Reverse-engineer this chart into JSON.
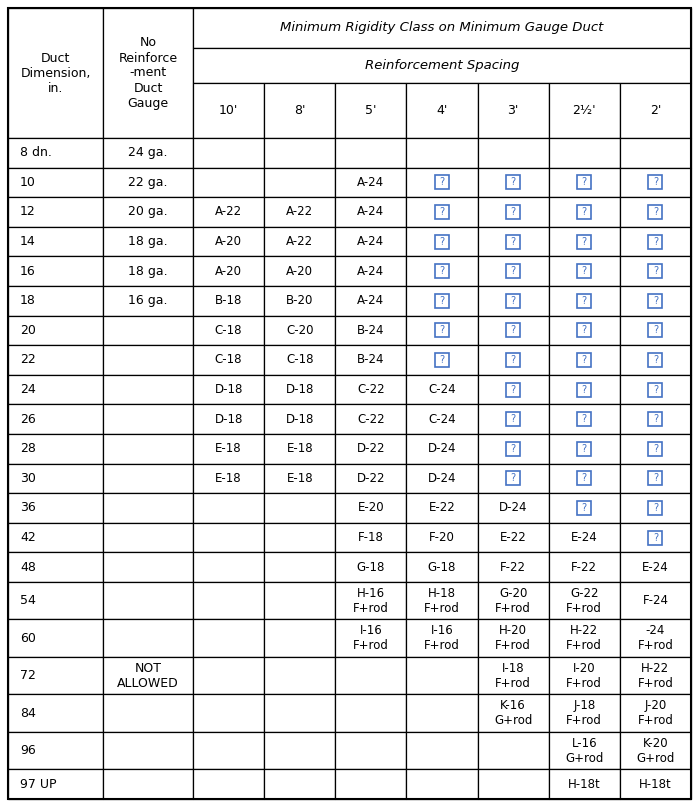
{
  "title_top": "Minimum Rigidity Class on Minimum Gauge Duct",
  "subtitle": "Reinforcement Spacing",
  "col_header1": "Duct\nDimension,\nin.",
  "col_header2": "No\nReinforce\n-ment\nDuct\nGauge",
  "spacing_headers": [
    "10'",
    "8'",
    "5'",
    "4'",
    "3'",
    "2½'",
    "2'"
  ],
  "rows": [
    {
      "dim": "8 dn.",
      "gauge": "24 ga.",
      "vals": [
        "",
        "",
        "",
        "",
        "",
        "",
        ""
      ]
    },
    {
      "dim": "10",
      "gauge": "22 ga.",
      "vals": [
        "",
        "",
        "A-24",
        "¿",
        "¿",
        "¿",
        "¿"
      ]
    },
    {
      "dim": "12",
      "gauge": "20 ga.",
      "vals": [
        "A-22",
        "A-22",
        "A-24",
        "¿",
        "¿",
        "¿",
        "¿"
      ]
    },
    {
      "dim": "14",
      "gauge": "18 ga.",
      "vals": [
        "A-20",
        "A-22",
        "A-24",
        "¿",
        "¿",
        "¿",
        "¿"
      ]
    },
    {
      "dim": "16",
      "gauge": "18 ga.",
      "vals": [
        "A-20",
        "A-20",
        "A-24",
        "¿",
        "¿",
        "¿",
        "¿"
      ]
    },
    {
      "dim": "18",
      "gauge": "16 ga.",
      "vals": [
        "B-18",
        "B-20",
        "A-24",
        "¿",
        "¿",
        "¿",
        "¿"
      ]
    },
    {
      "dim": "20",
      "gauge": "",
      "vals": [
        "C-18",
        "C-20",
        "B-24",
        "¿",
        "¿",
        "¿",
        "¿"
      ]
    },
    {
      "dim": "22",
      "gauge": "",
      "vals": [
        "C-18",
        "C-18",
        "B-24",
        "¿",
        "¿",
        "¿",
        "¿"
      ]
    },
    {
      "dim": "24",
      "gauge": "",
      "vals": [
        "D-18",
        "D-18",
        "C-22",
        "C-24",
        "¿",
        "¿",
        "¿"
      ]
    },
    {
      "dim": "26",
      "gauge": "",
      "vals": [
        "D-18",
        "D-18",
        "C-22",
        "C-24",
        "¿",
        "¿",
        "¿"
      ]
    },
    {
      "dim": "28",
      "gauge": "",
      "vals": [
        "E-18",
        "E-18",
        "D-22",
        "D-24",
        "¿",
        "¿",
        "¿"
      ]
    },
    {
      "dim": "30",
      "gauge": "",
      "vals": [
        "E-18",
        "E-18",
        "D-22",
        "D-24",
        "¿",
        "¿",
        "¿"
      ]
    },
    {
      "dim": "36",
      "gauge": "",
      "vals": [
        "",
        "",
        "E-20",
        "E-22",
        "D-24",
        "¿",
        "¿"
      ]
    },
    {
      "dim": "42",
      "gauge": "",
      "vals": [
        "",
        "",
        "F-18",
        "F-20",
        "E-22",
        "E-24",
        "¿"
      ]
    },
    {
      "dim": "48",
      "gauge": "",
      "vals": [
        "",
        "",
        "G-18",
        "G-18",
        "F-22",
        "F-22",
        "E-24"
      ]
    },
    {
      "dim": "54",
      "gauge": "",
      "vals": [
        "",
        "",
        "H-16\nF+rod",
        "H-18\nF+rod",
        "G-20\nF+rod",
        "G-22\nF+rod",
        "F-24"
      ]
    },
    {
      "dim": "60",
      "gauge": "",
      "vals": [
        "",
        "",
        "I-16\nF+rod",
        "I-16\nF+rod",
        "H-20\nF+rod",
        "H-22\nF+rod",
        "-24\nF+rod"
      ]
    },
    {
      "dim": "72",
      "gauge": "NOT\nALLOWED",
      "vals": [
        "",
        "",
        "",
        "",
        "I-18\nF+rod",
        "I-20\nF+rod",
        "H-22\nF+rod"
      ]
    },
    {
      "dim": "84",
      "gauge": "",
      "vals": [
        "",
        "",
        "",
        "",
        "K-16\nG+rod",
        "J-18\nF+rod",
        "J-20\nF+rod"
      ]
    },
    {
      "dim": "96",
      "gauge": "",
      "vals": [
        "",
        "",
        "",
        "",
        "",
        "L-16\nG+rod",
        "K-20\nG+rod"
      ]
    },
    {
      "dim": "97 UP",
      "gauge": "",
      "vals": [
        "",
        "",
        "",
        "",
        "",
        "H-18t",
        "H-18t"
      ]
    }
  ],
  "bg_color": "#ffffff",
  "header_bg": "#ffffff",
  "border_color": "#000000",
  "text_color": "#000000",
  "symbol_color": "#4472c4",
  "symbol_char": "¿"
}
